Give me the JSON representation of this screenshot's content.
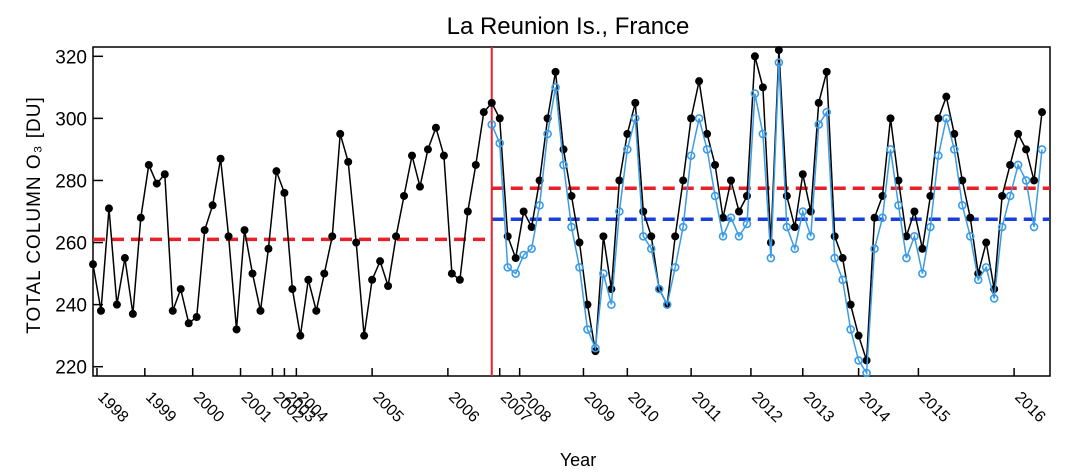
{
  "chart_data": {
    "type": "line",
    "title": "La Reunion Is., France",
    "ylabel": "TOTAL COLUMN O₃ [DU]",
    "xlabel": "Year",
    "xlim": [
      0,
      240
    ],
    "ylim": [
      217,
      323
    ],
    "yticks": [
      220,
      240,
      260,
      280,
      300,
      320
    ],
    "xticks": [
      {
        "value": 1,
        "label": "1998"
      },
      {
        "value": 13,
        "label": "1999"
      },
      {
        "value": 25,
        "label": "2000"
      },
      {
        "value": 37,
        "label": "2001"
      },
      {
        "value": 45,
        "label": "2002"
      },
      {
        "value": 48,
        "label": "2003"
      },
      {
        "value": 51,
        "label": "2004"
      },
      {
        "value": 70,
        "label": "2005"
      },
      {
        "value": 89,
        "label": "2006"
      },
      {
        "value": 102,
        "label": "2007"
      },
      {
        "value": 107,
        "label": "2008"
      },
      {
        "value": 123,
        "label": "2009"
      },
      {
        "value": 134,
        "label": "2010"
      },
      {
        "value": 150,
        "label": "2011"
      },
      {
        "value": 165,
        "label": "2012"
      },
      {
        "value": 178,
        "label": "2013"
      },
      {
        "value": 192,
        "label": "2014"
      },
      {
        "value": 207,
        "label": "2015"
      },
      {
        "value": 231,
        "label": "2016"
      }
    ],
    "divider_x": 100,
    "divider_color": "#e8202a",
    "reference_lines": [
      {
        "color": "#e8202a",
        "y": 261,
        "x": [
          0,
          100
        ]
      },
      {
        "color": "#e8202a",
        "y": 277.5,
        "x": [
          100,
          240
        ]
      },
      {
        "color": "#1a3fd8",
        "y": 267.5,
        "x": [
          100,
          240
        ]
      }
    ],
    "series": [
      {
        "color": "#000000",
        "marker": "filled",
        "x": [
          0,
          2,
          4,
          6,
          8,
          10,
          12,
          14,
          16,
          18,
          20,
          22,
          24,
          26,
          28,
          30,
          32,
          34,
          36,
          38,
          40,
          42,
          44,
          46,
          48,
          50,
          52,
          54,
          56,
          58,
          60,
          62,
          64,
          66,
          68,
          70,
          72,
          74,
          76,
          78,
          80,
          82,
          84,
          86,
          88,
          90,
          92,
          94,
          96,
          98,
          100,
          102,
          104,
          106,
          108,
          110,
          112,
          114,
          116,
          118,
          120,
          122,
          124,
          126,
          128,
          130,
          132,
          134,
          136,
          138,
          140,
          142,
          144,
          146,
          148,
          150,
          152,
          154,
          156,
          158,
          160,
          162,
          164,
          166,
          168,
          170,
          172,
          174,
          176,
          178,
          180,
          182,
          184,
          186,
          188,
          190,
          192,
          194,
          196,
          198,
          200,
          202,
          204,
          206,
          208,
          210,
          212,
          214,
          216,
          218,
          220,
          222,
          224,
          226,
          228,
          230,
          232,
          234,
          236,
          238
        ],
        "values": [
          253,
          238,
          271,
          240,
          255,
          237,
          268,
          285,
          279,
          282,
          238,
          245,
          234,
          236,
          264,
          272,
          287,
          262,
          232,
          264,
          250,
          238,
          258,
          283,
          276,
          245,
          230,
          248,
          238,
          250,
          262,
          295,
          286,
          260,
          230,
          248,
          254,
          246,
          262,
          275,
          288,
          278,
          290,
          297,
          288,
          250,
          248,
          270,
          285,
          302,
          305,
          300,
          262,
          255,
          270,
          265,
          280,
          300,
          315,
          290,
          275,
          260,
          240,
          225,
          262,
          245,
          280,
          295,
          305,
          270,
          262,
          245,
          240,
          262,
          280,
          300,
          312,
          295,
          285,
          268,
          280,
          270,
          275,
          320,
          310,
          260,
          322,
          275,
          265,
          282,
          270,
          305,
          315,
          262,
          255,
          240,
          230,
          222,
          268,
          275,
          300,
          280,
          262,
          270,
          258,
          275,
          300,
          307,
          295,
          280,
          268,
          250,
          260,
          245,
          275,
          285,
          295,
          290,
          280,
          302
        ]
      },
      {
        "color": "#3a9be6",
        "marker": "open",
        "x": [
          100,
          102,
          104,
          106,
          108,
          110,
          112,
          114,
          116,
          118,
          120,
          122,
          124,
          126,
          128,
          130,
          132,
          134,
          136,
          138,
          140,
          142,
          144,
          146,
          148,
          150,
          152,
          154,
          156,
          158,
          160,
          162,
          164,
          166,
          168,
          170,
          172,
          174,
          176,
          178,
          180,
          182,
          184,
          186,
          188,
          190,
          192,
          194,
          196,
          198,
          200,
          202,
          204,
          206,
          208,
          210,
          212,
          214,
          216,
          218,
          220,
          222,
          224,
          226,
          228,
          230,
          232,
          234,
          236,
          238
        ],
        "values": [
          298,
          292,
          252,
          250,
          256,
          258,
          272,
          295,
          310,
          285,
          265,
          252,
          232,
          226,
          250,
          240,
          270,
          290,
          300,
          262,
          258,
          245,
          240,
          252,
          265,
          288,
          300,
          290,
          275,
          262,
          268,
          262,
          266,
          308,
          295,
          255,
          318,
          265,
          258,
          270,
          262,
          298,
          302,
          255,
          248,
          232,
          222,
          218,
          258,
          268,
          290,
          272,
          255,
          262,
          250,
          265,
          288,
          300,
          290,
          272,
          262,
          248,
          252,
          242,
          265,
          275,
          285,
          280,
          265,
          290
        ]
      }
    ]
  }
}
